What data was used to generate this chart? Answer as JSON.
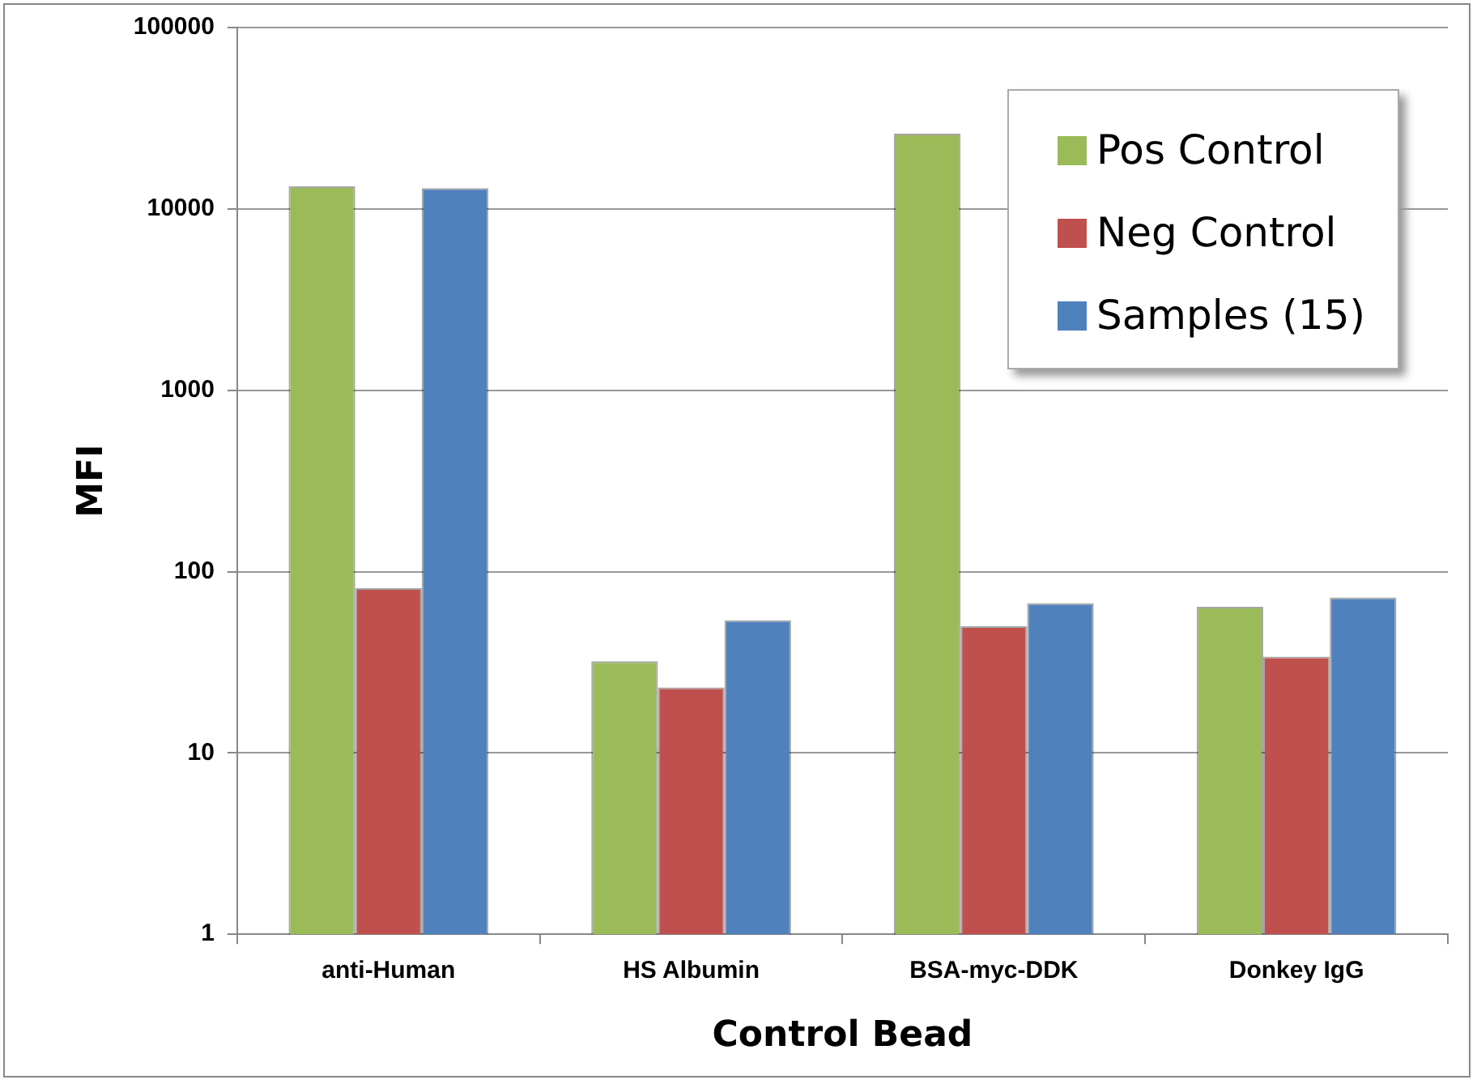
{
  "chart_data": {
    "type": "bar",
    "xlabel": "Control Bead",
    "ylabel": "MFI",
    "categories": [
      "anti-Human",
      "HS Albumin",
      "BSA-myc-DDK",
      "Donkey IgG"
    ],
    "series": [
      {
        "name": "Pos Control",
        "color": "#9bbb59",
        "values": [
          13300,
          32,
          26000,
          64
        ]
      },
      {
        "name": "Neg Control",
        "color": "#c0504d",
        "values": [
          81,
          23,
          50,
          34
        ]
      },
      {
        "name": "Samples (15)",
        "color": "#4f81bd",
        "values": [
          13000,
          54,
          67,
          72
        ]
      }
    ],
    "log": true,
    "ylim": [
      1,
      100000
    ],
    "yticks": [
      1,
      10,
      100,
      1000,
      10000,
      100000
    ],
    "grid": "y",
    "legend": "top right"
  }
}
